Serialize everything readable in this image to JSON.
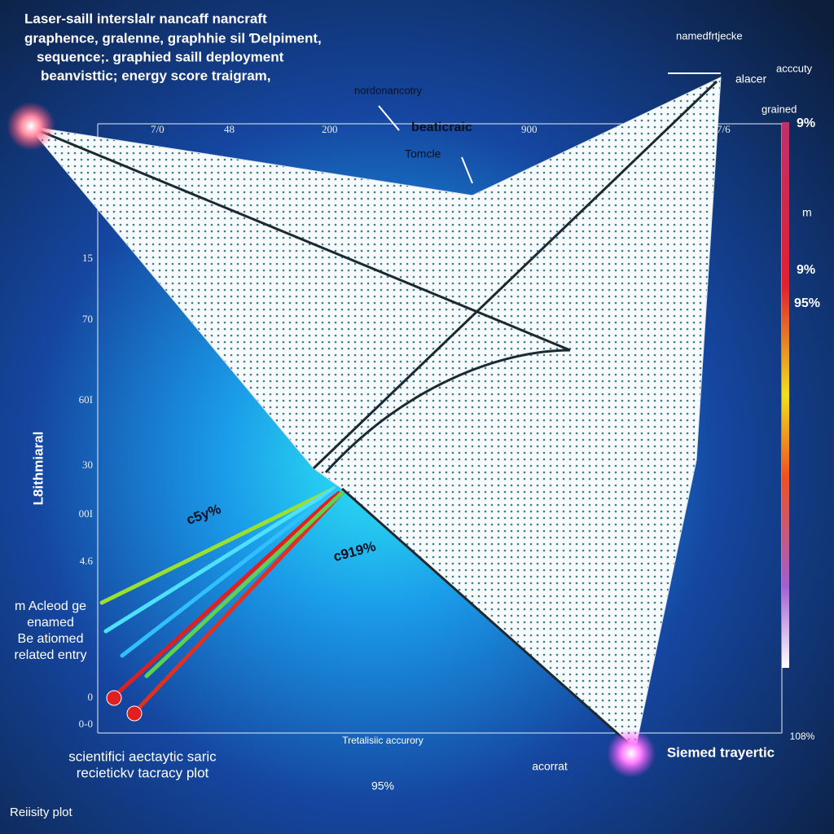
{
  "title_lines": [
    "Laser-saill interslalr nancaff nancraft",
    "graphence, gralenne, graphhie sil Ɗelpiment,",
    "sequence;. graphied saill deployment",
    "beanvisttic; energy score traigram,"
  ],
  "annotations": {
    "top_right": "namedfrtjecke",
    "accuracy": "acccuty",
    "alacer": "alacer",
    "grained": "grained",
    "pct_top": "9%",
    "nordon": "nordonancotry",
    "beaticraic": "beaticraic",
    "tomcle": "Tomcle",
    "m": "m",
    "pct_mid": "9%",
    "pct_95": "95%",
    "beam_a": "c5y%",
    "beam_b": "c919%"
  },
  "top_axis_labels": [
    "7/0",
    "48",
    "200",
    "900",
    "7/6"
  ],
  "left_axis_labels": [
    "15",
    "70",
    "60I",
    "30",
    "00I",
    "4.6",
    "0",
    "0-0"
  ],
  "y_axis_title": "L8ithmiaral",
  "left_notes": [
    "m Acleod ge",
    "enamed",
    "Be atiomed",
    "related entry"
  ],
  "bottom": {
    "x_title": "Tretalisiic accurory",
    "right_tick": "108%",
    "caption_1": "scientifici aectaytic saric",
    "caption_2": "recietickv tacracy plot",
    "acorrat": "acorrat",
    "trajectory": "Siemed trayertic",
    "pct": "95%",
    "footer": "Reiisity plot"
  }
}
